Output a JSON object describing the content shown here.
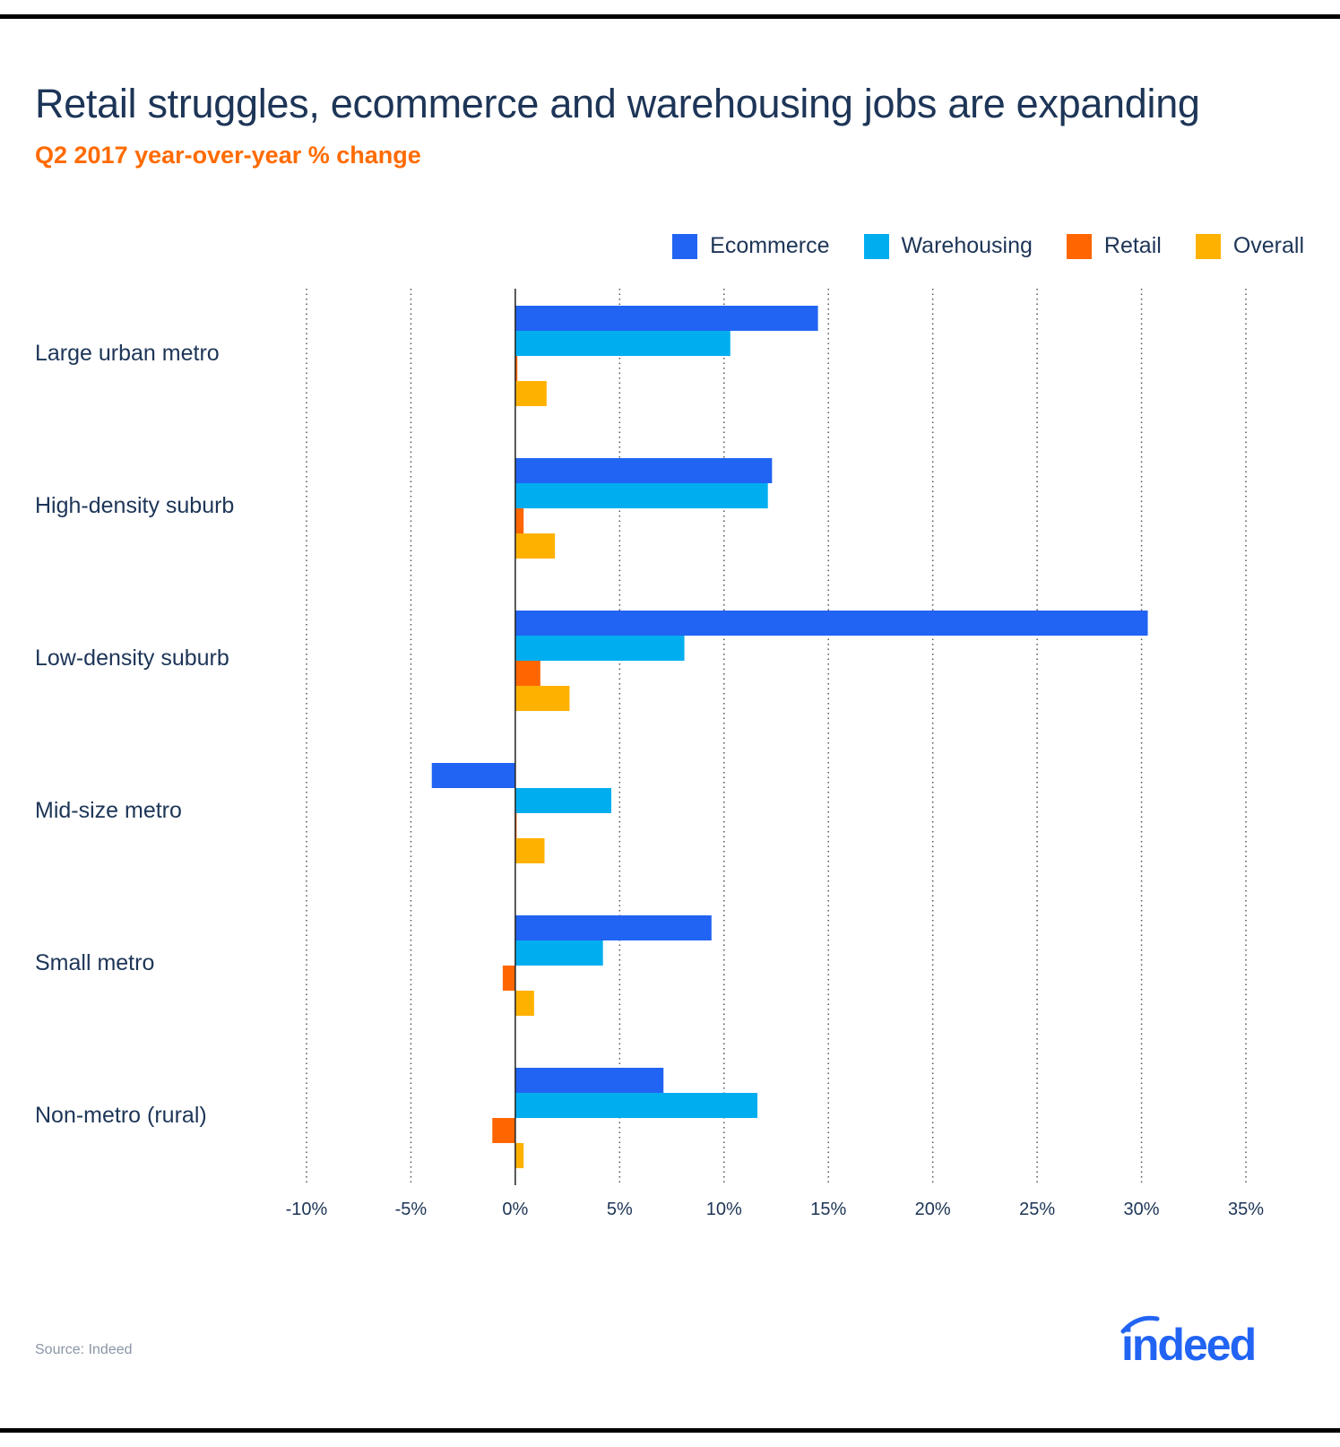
{
  "header": {
    "title": "Retail struggles, ecommerce and warehousing jobs are expanding",
    "subtitle": "Q2 2017 year-over-year % change"
  },
  "footer": {
    "source": "Source: Indeed",
    "logo_text": "indeed"
  },
  "colors": {
    "Ecommerce": "#2164f3",
    "Warehousing": "#00aeef",
    "Retail": "#ff6600",
    "Overall": "#ffb100",
    "text": "#1d3557"
  },
  "chart_data": {
    "type": "bar",
    "orientation": "horizontal",
    "title": "Retail struggles, ecommerce and warehousing jobs are expanding",
    "subtitle": "Q2 2017 year-over-year % change",
    "categories": [
      "Large urban metro",
      "High-density suburb",
      "Low-density suburb",
      "Mid-size metro",
      "Small metro",
      "Non-metro (rural)"
    ],
    "series": [
      {
        "name": "Ecommerce",
        "values": [
          14.5,
          12.3,
          30.3,
          -4.0,
          9.4,
          7.1
        ]
      },
      {
        "name": "Warehousing",
        "values": [
          10.3,
          12.1,
          8.1,
          4.6,
          4.2,
          11.6
        ]
      },
      {
        "name": "Retail",
        "values": [
          0.1,
          0.4,
          1.2,
          0.05,
          -0.6,
          -1.1
        ]
      },
      {
        "name": "Overall",
        "values": [
          1.5,
          1.9,
          2.6,
          1.4,
          0.9,
          0.4
        ]
      }
    ],
    "xlim": [
      -10,
      35
    ],
    "xticks": [
      -10,
      -5,
      0,
      5,
      10,
      15,
      20,
      25,
      30,
      35
    ],
    "xtick_labels": [
      "-10%",
      "-5%",
      "0%",
      "5%",
      "10%",
      "15%",
      "20%",
      "25%",
      "30%",
      "35%"
    ],
    "grid": "vertical dotted",
    "legend_position": "top-right"
  }
}
